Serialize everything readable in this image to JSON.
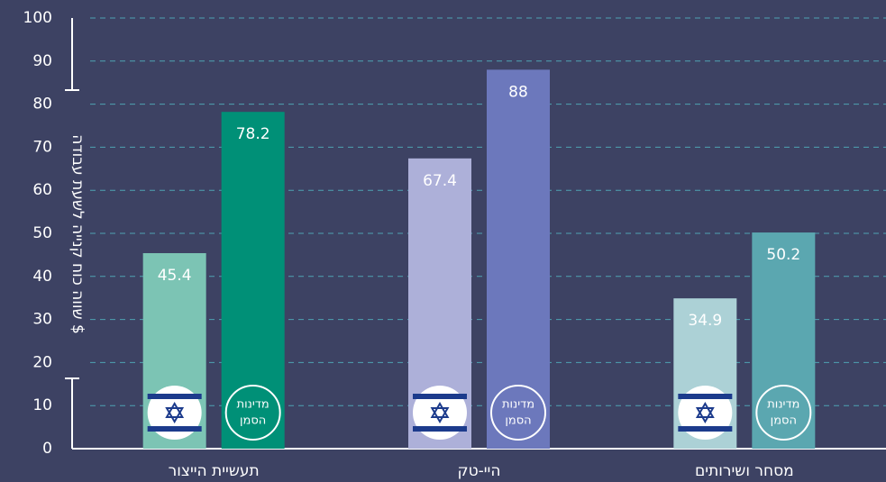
{
  "chart_data": {
    "type": "bar",
    "y_label": "שווה כוח קנייה לשעת עבודה $",
    "categories": [
      "תעשיית הייצור",
      "היי-טק",
      "מסחר ושירותים"
    ],
    "series": [
      {
        "colors": [
          "#7cc4b4",
          "#adb0d9",
          "#acd1d6"
        ],
        "values": [
          45.4,
          67.4,
          34.9
        ]
      },
      {
        "label_lines": [
          "מדינות",
          "הסמן"
        ],
        "colors": [
          "#009077",
          "#6c78bc",
          "#5ba7b0"
        ],
        "values": [
          78.2,
          88,
          50.2
        ]
      }
    ],
    "ylim": [
      0,
      100
    ],
    "yticks": [
      0,
      10,
      20,
      30,
      40,
      50,
      60,
      70,
      80,
      90,
      100
    ],
    "grid": true
  }
}
